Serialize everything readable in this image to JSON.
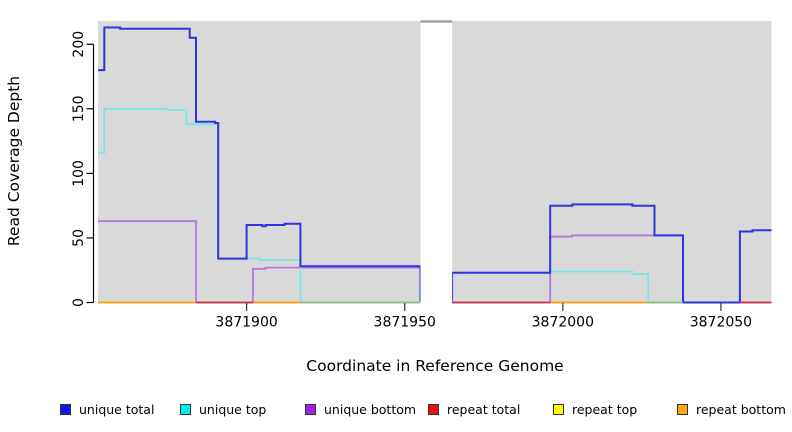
{
  "axes": {
    "x_label": "Coordinate in Reference Genome",
    "y_label": "Read Coverage Depth",
    "x_ticks": [
      3871900,
      3871950,
      3872000,
      3872050
    ],
    "y_ticks": [
      0,
      50,
      100,
      150,
      200
    ]
  },
  "legend": {
    "items": [
      {
        "label": "unique total",
        "color": "#1212ee"
      },
      {
        "label": "unique top",
        "color": "#00eeee"
      },
      {
        "label": "unique bottom",
        "color": "#a020f0"
      },
      {
        "label": "repeat total",
        "color": "#ee1111"
      },
      {
        "label": "repeat top",
        "color": "#ffff00"
      },
      {
        "label": "repeat bottom",
        "color": "#ffa510"
      }
    ]
  },
  "chart_data": {
    "type": "line",
    "step": true,
    "title": "",
    "xlabel": "Coordinate in Reference Genome",
    "ylabel": "Read Coverage Depth",
    "xlim": [
      3871853,
      3872066
    ],
    "ylim": [
      0,
      218
    ],
    "grid": false,
    "background": "#d9d9d9",
    "no_data_gap": {
      "from": 3871955,
      "to": 3871965
    },
    "series": [
      {
        "name": "repeat top",
        "color": "#f0f010",
        "paths": [
          [
            [
              3871853,
              0
            ],
            [
              3872066,
              0
            ]
          ]
        ]
      },
      {
        "name": "repeat bottom",
        "color": "#ff9d1c",
        "paths": [
          [
            [
              3871853,
              0
            ],
            [
              3872066,
              0
            ]
          ]
        ]
      },
      {
        "name": "unique bottom",
        "color": "#b678dd",
        "paths": [
          [
            [
              3871853,
              63
            ],
            [
              3871884,
              63
            ],
            [
              3871884,
              0
            ]
          ],
          [
            [
              3871902,
              0
            ],
            [
              3871902,
              26
            ],
            [
              3871906,
              26
            ],
            [
              3871906,
              27
            ],
            [
              3871955,
              27
            ],
            [
              3871955,
              0
            ]
          ],
          [
            [
              3871996,
              0
            ],
            [
              3871996,
              51
            ],
            [
              3872003,
              51
            ],
            [
              3872003,
              52
            ],
            [
              3872038,
              52
            ],
            [
              3872038,
              0
            ]
          ]
        ]
      },
      {
        "name": "unique top",
        "color": "#79e6e8",
        "paths": [
          [
            [
              3871853,
              116
            ],
            [
              3871855,
              116
            ],
            [
              3871855,
              150
            ],
            [
              3871875,
              150
            ],
            [
              3871875,
              149
            ],
            [
              3871881,
              149
            ],
            [
              3871881,
              138
            ],
            [
              3871891,
              138
            ],
            [
              3871891,
              34
            ],
            [
              3871904,
              34
            ],
            [
              3871904,
              33
            ],
            [
              3871917,
              33
            ],
            [
              3871917,
              0
            ]
          ],
          [
            [
              3871965,
              23
            ],
            [
              3871996,
              23
            ],
            [
              3871996,
              24
            ],
            [
              3872022,
              24
            ],
            [
              3872022,
              22
            ],
            [
              3872027,
              22
            ],
            [
              3872027,
              0
            ]
          ]
        ]
      },
      {
        "name": "unique total",
        "color": "#3333dd",
        "paths": [
          [
            [
              3871853,
              180
            ],
            [
              3871855,
              180
            ],
            [
              3871855,
              213
            ],
            [
              3871860,
              213
            ],
            [
              3871860,
              212
            ],
            [
              3871882,
              212
            ],
            [
              3871882,
              205
            ],
            [
              3871884,
              205
            ],
            [
              3871884,
              140
            ],
            [
              3871890,
              140
            ],
            [
              3871890,
              139
            ],
            [
              3871891,
              139
            ],
            [
              3871891,
              34
            ],
            [
              3871900,
              34
            ],
            [
              3871900,
              60
            ],
            [
              3871905,
              60
            ],
            [
              3871905,
              59
            ],
            [
              3871906,
              59
            ],
            [
              3871906,
              60
            ],
            [
              3871912,
              60
            ],
            [
              3871912,
              61
            ],
            [
              3871917,
              61
            ],
            [
              3871917,
              28
            ],
            [
              3871955,
              28
            ],
            [
              3871955,
              0
            ]
          ],
          [
            [
              3871965,
              0
            ],
            [
              3871965,
              23
            ],
            [
              3871996,
              23
            ],
            [
              3871996,
              75
            ],
            [
              3872003,
              75
            ],
            [
              3872003,
              76
            ],
            [
              3872022,
              76
            ],
            [
              3872022,
              75
            ],
            [
              3872029,
              75
            ],
            [
              3872029,
              52
            ],
            [
              3872038,
              52
            ],
            [
              3872038,
              0
            ],
            [
              3872056,
              0
            ],
            [
              3872056,
              55
            ],
            [
              3872060,
              55
            ],
            [
              3872060,
              56
            ],
            [
              3872066,
              56
            ]
          ]
        ]
      }
    ],
    "zero_overlays": [
      {
        "from": 3871884,
        "to": 3871902,
        "color": "#c62e62"
      },
      {
        "from": 3871917,
        "to": 3871955,
        "color": "#7dc793"
      },
      {
        "from": 3871965,
        "to": 3871996,
        "color": "#c62e62"
      },
      {
        "from": 3872027,
        "to": 3872038,
        "color": "#7dc793"
      },
      {
        "from": 3872056,
        "to": 3872066,
        "color": "#c62e62"
      }
    ]
  }
}
